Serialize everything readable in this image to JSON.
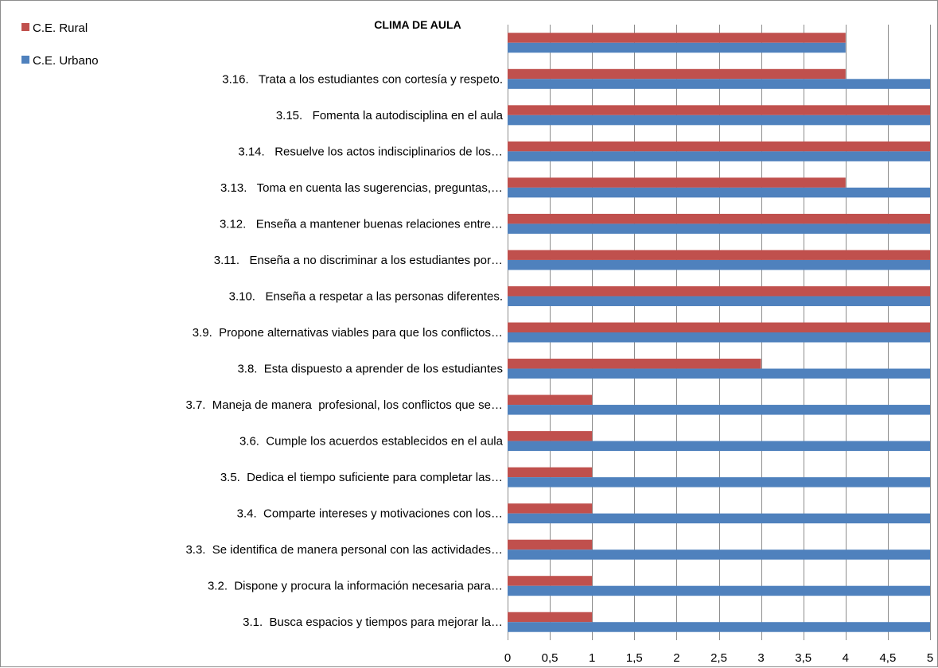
{
  "chart_data": {
    "type": "bar",
    "orientation": "horizontal",
    "title": "CLIMA DE AULA",
    "categories": [
      "",
      "3.16.   Trata a los estudiantes con cortesía y respeto.",
      "3.15.   Fomenta la autodisciplina en el aula",
      "3.14.   Resuelve los actos indisciplinarios de los…",
      "3.13.   Toma en cuenta las sugerencias, preguntas,…",
      "3.12.   Enseña a mantener buenas relaciones entre…",
      "3.11.   Enseña a no discriminar a los estudiantes por…",
      "3.10.   Enseña a respetar a las personas diferentes.",
      "3.9.  Propone alternativas viables para que los conflictos…",
      "3.8.  Esta dispuesto a aprender de los estudiantes",
      "3.7.  Maneja de manera  profesional, los conflictos que se…",
      "3.6.  Cumple los acuerdos establecidos en el aula",
      "3.5.  Dedica el tiempo suficiente para completar las…",
      "3.4.  Comparte intereses y motivaciones con los…",
      "3.3.  Se identifica de manera personal con las actividades…",
      "3.2.  Dispone y procura la información necesaria para…",
      "3.1.  Busca espacios y tiempos para mejorar la…"
    ],
    "series": [
      {
        "name": "C.E. Rural",
        "color": "#c0504d",
        "values": [
          4,
          4,
          5,
          5,
          4,
          5,
          5,
          5,
          5,
          3,
          1,
          1,
          1,
          1,
          1,
          1,
          1
        ]
      },
      {
        "name": "C.E. Urbano",
        "color": "#4f81bd",
        "values": [
          4,
          5,
          5,
          5,
          5,
          5,
          5,
          5,
          5,
          5,
          5,
          5,
          5,
          5,
          5,
          5,
          5
        ]
      }
    ],
    "xlim": [
      0,
      5
    ],
    "xticks": [
      "0",
      "0,5",
      "1",
      "1,5",
      "2",
      "2,5",
      "3",
      "3,5",
      "4",
      "4,5",
      "5"
    ],
    "grid": true,
    "legend_position": "top-left"
  }
}
